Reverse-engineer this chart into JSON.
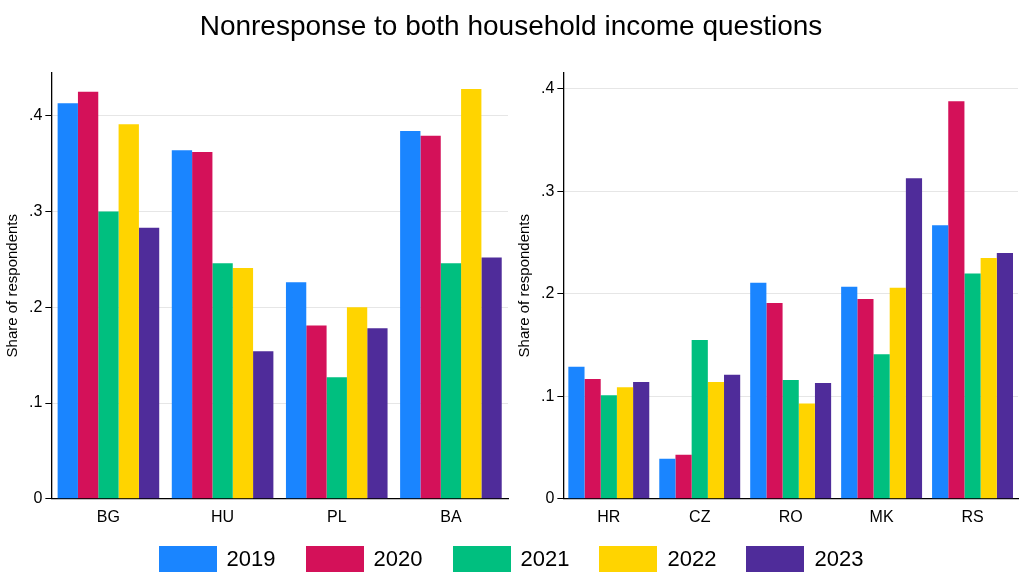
{
  "chart_data": [
    {
      "type": "bar",
      "title": "Nonresponse to both household income questions",
      "ylabel": "Share of respondents",
      "categories": [
        "BG",
        "HU",
        "PL",
        "BA"
      ],
      "series": [
        {
          "name": "2019",
          "color": "#1a85ff",
          "values": [
            0.413,
            0.364,
            0.226,
            0.384
          ]
        },
        {
          "name": "2020",
          "color": "#d41159",
          "values": [
            0.425,
            0.362,
            0.181,
            0.379
          ]
        },
        {
          "name": "2021",
          "color": "#00bf7f",
          "values": [
            0.3,
            0.246,
            0.127,
            0.246
          ]
        },
        {
          "name": "2022",
          "color": "#ffd400",
          "values": [
            0.391,
            0.241,
            0.2,
            0.428
          ]
        },
        {
          "name": "2023",
          "color": "#4f2c9a",
          "values": [
            0.283,
            0.154,
            0.178,
            0.252
          ]
        }
      ],
      "ylim": [
        0,
        0.445
      ],
      "yticks": [
        0,
        {
          "value": 0.1,
          "label": ".1"
        },
        {
          "value": 0.2,
          "label": ".2"
        },
        {
          "value": 0.3,
          "label": ".3"
        },
        {
          "value": 0.4,
          "label": ".4"
        }
      ],
      "grid": "y",
      "legend": "bottom"
    },
    {
      "type": "bar",
      "ylabel": "Share of respondents",
      "categories": [
        "HR",
        "CZ",
        "RO",
        "MK",
        "RS"
      ],
      "series": [
        {
          "name": "2019",
          "color": "#1a85ff",
          "values": [
            0.129,
            0.039,
            0.211,
            0.207,
            0.267
          ]
        },
        {
          "name": "2020",
          "color": "#d41159",
          "values": [
            0.117,
            0.043,
            0.191,
            0.195,
            0.388
          ]
        },
        {
          "name": "2021",
          "color": "#00bf7f",
          "values": [
            0.101,
            0.155,
            0.116,
            0.141,
            0.22
          ]
        },
        {
          "name": "2022",
          "color": "#ffd400",
          "values": [
            0.109,
            0.114,
            0.093,
            0.206,
            0.235
          ]
        },
        {
          "name": "2023",
          "color": "#4f2c9a",
          "values": [
            0.114,
            0.121,
            0.113,
            0.313,
            0.24
          ]
        }
      ],
      "ylim": [
        0,
        0.416
      ],
      "yticks": [
        0,
        {
          "value": 0.1,
          "label": ".1"
        },
        {
          "value": 0.2,
          "label": ".2"
        },
        {
          "value": 0.3,
          "label": ".3"
        },
        {
          "value": 0.4,
          "label": ".4"
        }
      ],
      "grid": "y",
      "legend": "bottom"
    }
  ]
}
